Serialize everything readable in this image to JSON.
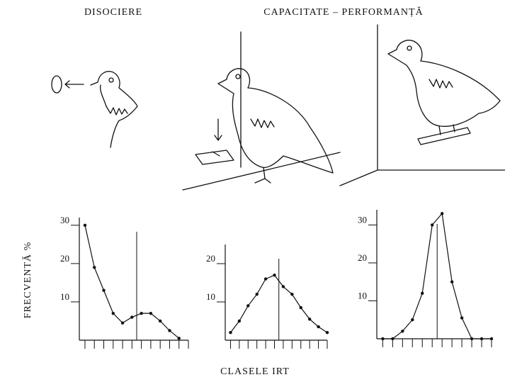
{
  "figure": {
    "headings": [
      "DISOCIERE",
      "CAPACITATE – PERFORMANȚĂ"
    ],
    "ylabel": "FRECVENTĂ %",
    "xlabel": "CLASELE IRT"
  },
  "chart_data": [
    {
      "type": "line",
      "x": [
        1,
        2,
        3,
        4,
        5,
        6,
        7,
        8,
        9,
        10,
        11
      ],
      "values": [
        30,
        19,
        13,
        7,
        4.5,
        6,
        7,
        7,
        5,
        2.5,
        0.5
      ],
      "color": "#111",
      "xlim": [
        0.4,
        12
      ],
      "xticks": [
        1,
        2,
        3,
        4,
        5,
        6,
        7,
        8,
        9,
        10,
        11,
        12
      ],
      "ylim": [
        0,
        32
      ],
      "yticks": [
        10,
        20,
        30
      ],
      "marker_x": 6.5
    },
    {
      "type": "line",
      "x": [
        1,
        2,
        3,
        4,
        5,
        6,
        7,
        8,
        9,
        10,
        11,
        12
      ],
      "values": [
        2,
        5,
        9,
        12,
        16,
        17,
        14,
        12,
        8.5,
        5.5,
        3.5,
        2
      ],
      "color": "#111",
      "xlim": [
        0.4,
        12
      ],
      "xticks": [
        1,
        2,
        3,
        4,
        5,
        6,
        7,
        8,
        9,
        10,
        11,
        12
      ],
      "ylim": [
        0,
        25
      ],
      "yticks": [
        10,
        20
      ],
      "marker_x": 6.5
    },
    {
      "type": "line",
      "x": [
        1,
        2,
        3,
        4,
        5,
        6,
        7,
        8,
        9,
        10,
        11,
        12
      ],
      "values": [
        0,
        0,
        2,
        5,
        12,
        30,
        33,
        15,
        5.5,
        0,
        0,
        0
      ],
      "color": "#111",
      "xlim": [
        0.4,
        12
      ],
      "xticks": [
        1,
        2,
        3,
        4,
        5,
        6,
        7,
        8,
        9,
        10,
        11,
        12
      ],
      "ylim": [
        0,
        34
      ],
      "yticks": [
        10,
        20,
        30
      ],
      "marker_x": 6.5
    }
  ]
}
